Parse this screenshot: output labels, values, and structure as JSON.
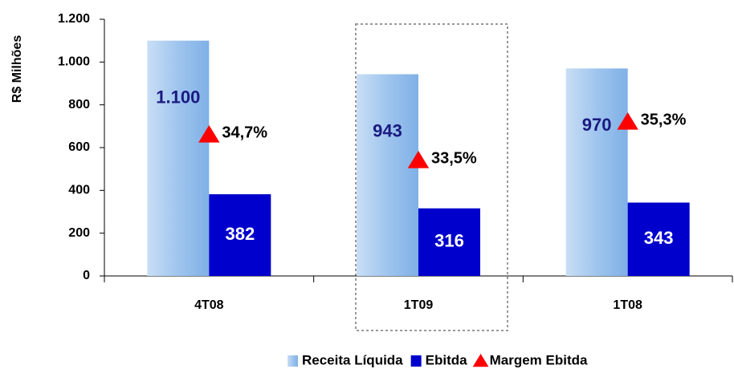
{
  "chart_data": {
    "type": "bar",
    "y_label": "R$ Milhões",
    "categories": [
      "4T08",
      "1T09",
      "1T08"
    ],
    "series": [
      {
        "name": "Receita Líquida",
        "color": "#9fc5ee",
        "values": [
          1100,
          943,
          970
        ],
        "value_labels": [
          "1.100",
          "943",
          "970"
        ]
      },
      {
        "name": "Ebitda",
        "color": "#0000cc",
        "values": [
          382,
          316,
          343
        ]
      },
      {
        "name": "Margem Ebitda",
        "color": "#ff0000",
        "type": "scatter",
        "axis": "y2",
        "values": [
          34.7,
          33.5,
          35.3
        ],
        "value_labels": [
          "34,7%",
          "33,5%",
          "35,3%"
        ]
      }
    ],
    "ylim": [
      0,
      1200
    ],
    "yticks": [
      0,
      200,
      400,
      600,
      800,
      {
        "value": 1000,
        "label": "1.000"
      },
      {
        "value": 1200,
        "label": "1.200"
      }
    ],
    "y2lim": [
      28.1,
      40.1
    ],
    "legend": "bottom"
  }
}
